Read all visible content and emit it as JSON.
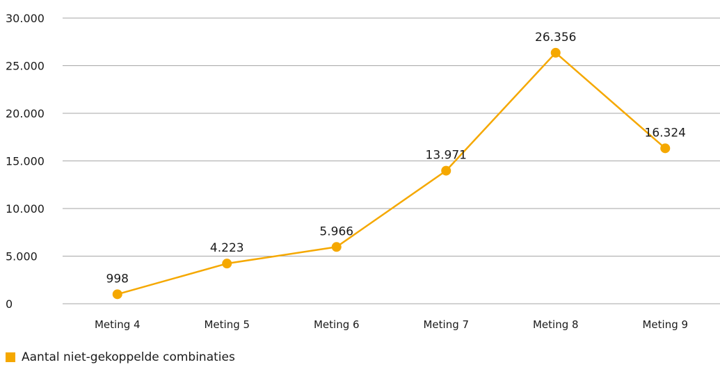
{
  "chart_data": {
    "type": "line",
    "title": "",
    "xlabel": "",
    "ylabel": "",
    "categories": [
      "Meting 4",
      "Meting 5",
      "Meting 6",
      "Meting 7",
      "Meting 8",
      "Meting 9"
    ],
    "series": [
      {
        "name": "Aantal niet-gekoppelde combinaties",
        "values": [
          998,
          4223,
          5966,
          13971,
          26356,
          16324
        ],
        "labels": [
          "998",
          "4.223",
          "5.966",
          "13.971",
          "26.356",
          "16.324"
        ],
        "color": "#f5a800"
      }
    ],
    "ylim": [
      0,
      30000
    ],
    "yticks": [
      0,
      5000,
      10000,
      15000,
      20000,
      25000,
      30000
    ],
    "ytick_labels": [
      "0",
      "5.000",
      "10.000",
      "15.000",
      "20.000",
      "25.000",
      "30.000"
    ],
    "grid": true,
    "legend_position": "bottom-left",
    "gridline_color": "#a6a6a6"
  }
}
